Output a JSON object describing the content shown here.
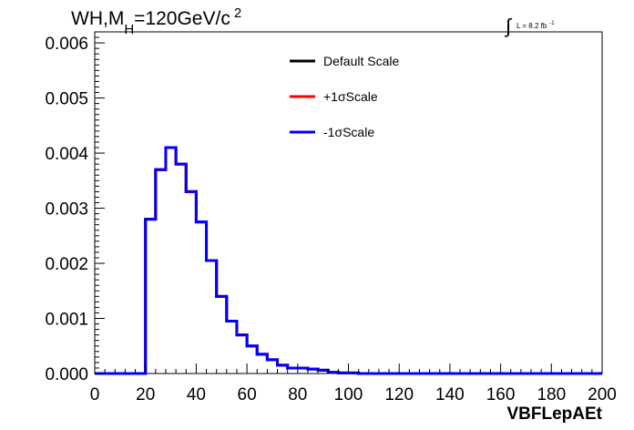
{
  "chart_data": {
    "type": "line",
    "title_main": "WH,M",
    "title_sub": "H",
    "title_rest": "=120GeV/c",
    "title_sup": "2",
    "lumi_main": "L = 8.2 fb",
    "lumi_sup": "-1",
    "xlabel": "VBFLepAEt",
    "ylabel": "",
    "xlim": [
      0,
      200
    ],
    "ylim": [
      0,
      0.0062
    ],
    "xticks": [
      "0",
      "20",
      "40",
      "60",
      "80",
      "100",
      "120",
      "140",
      "160",
      "180",
      "200"
    ],
    "xtick_values": [
      0,
      20,
      40,
      60,
      80,
      100,
      120,
      140,
      160,
      180,
      200
    ],
    "yticks": [
      "0.000",
      "0.001",
      "0.002",
      "0.003",
      "0.004",
      "0.005",
      "0.006"
    ],
    "ytick_values": [
      0,
      0.001,
      0.002,
      0.003,
      0.004,
      0.005,
      0.006
    ],
    "bin_edges": [
      0,
      4,
      8,
      12,
      16,
      20,
      24,
      28,
      32,
      36,
      40,
      44,
      48,
      52,
      56,
      60,
      64,
      68,
      72,
      76,
      80,
      84,
      88,
      92,
      96,
      100,
      104,
      200
    ],
    "legend_position": "top-center",
    "series": [
      {
        "name": "Default Scale",
        "color": "#000000",
        "values": [
          0,
          0,
          0,
          0,
          0,
          0.0028,
          0.0037,
          0.0041,
          0.0038,
          0.0033,
          0.00275,
          0.00205,
          0.0014,
          0.00095,
          0.0007,
          0.0005,
          0.00035,
          0.00025,
          0.00015,
          0.0001,
          0.0001,
          8e-05,
          6e-05,
          2e-05,
          1e-05,
          1e-05,
          0
        ]
      },
      {
        "name": "+1σScale",
        "color": "#ff0000",
        "values": [
          0,
          0,
          0,
          0,
          0,
          0.0028,
          0.0037,
          0.0041,
          0.0038,
          0.0033,
          0.00275,
          0.00205,
          0.0014,
          0.00095,
          0.0007,
          0.0005,
          0.00035,
          0.00025,
          0.00015,
          0.0001,
          0.0001,
          8e-05,
          6e-05,
          2e-05,
          1e-05,
          1e-05,
          0
        ]
      },
      {
        "name": "-1σScale",
        "color": "#0000ff",
        "values": [
          0,
          0,
          0,
          0,
          0,
          0.0028,
          0.0037,
          0.0041,
          0.0038,
          0.0033,
          0.00275,
          0.00205,
          0.0014,
          0.00095,
          0.0007,
          0.0005,
          0.00035,
          0.00025,
          0.00015,
          0.0001,
          0.0001,
          8e-05,
          6e-05,
          2e-05,
          1e-05,
          1e-05,
          0
        ]
      }
    ]
  }
}
